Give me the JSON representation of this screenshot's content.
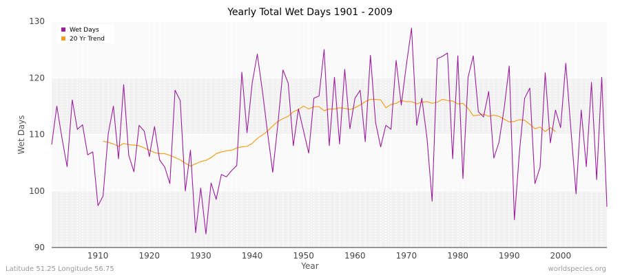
{
  "chart_data": {
    "type": "line",
    "title": "Yearly Total Wet Days 1901 - 2009",
    "xlabel": "Year",
    "ylabel": "Wet Days",
    "xlim": [
      1901,
      2009
    ],
    "ylim": [
      90,
      130
    ],
    "yticks": [
      90,
      100,
      110,
      120,
      130
    ],
    "xticks": [
      1910,
      1920,
      1930,
      1940,
      1950,
      1960,
      1970,
      1980,
      1990,
      2000
    ],
    "grid": true,
    "legend_position": "top-left",
    "series": [
      {
        "name": "Wet Days",
        "color": "#9b1b9e",
        "x": [
          1901,
          1902,
          1903,
          1904,
          1905,
          1906,
          1907,
          1908,
          1909,
          1910,
          1911,
          1912,
          1913,
          1914,
          1915,
          1916,
          1917,
          1918,
          1919,
          1920,
          1921,
          1922,
          1923,
          1924,
          1925,
          1926,
          1927,
          1928,
          1929,
          1930,
          1931,
          1932,
          1933,
          1934,
          1935,
          1936,
          1937,
          1938,
          1939,
          1940,
          1941,
          1942,
          1943,
          1944,
          1945,
          1946,
          1947,
          1948,
          1949,
          1950,
          1951,
          1952,
          1953,
          1954,
          1955,
          1956,
          1957,
          1958,
          1959,
          1960,
          1961,
          1962,
          1963,
          1964,
          1965,
          1966,
          1967,
          1968,
          1969,
          1970,
          1971,
          1972,
          1973,
          1974,
          1975,
          1976,
          1977,
          1978,
          1979,
          1980,
          1981,
          1982,
          1983,
          1984,
          1985,
          1986,
          1987,
          1988,
          1989,
          1990,
          1991,
          1992,
          1993,
          1994,
          1995,
          1996,
          1997,
          1998,
          1999,
          2000,
          2001,
          2002,
          2003,
          2004,
          2005,
          2006,
          2007,
          2008,
          2009
        ],
        "values": [
          108.2,
          115.0,
          109.4,
          104.3,
          116.1,
          110.9,
          111.7,
          106.4,
          106.9,
          97.4,
          99.1,
          110.1,
          115.0,
          105.7,
          118.8,
          106.3,
          103.4,
          111.6,
          110.6,
          106.1,
          111.4,
          105.5,
          104.2,
          101.3,
          117.8,
          116.0,
          100.0,
          107.2,
          92.6,
          100.5,
          92.4,
          101.4,
          98.5,
          102.9,
          102.5,
          103.6,
          104.5,
          121.0,
          110.3,
          119.1,
          124.2,
          117.6,
          110.3,
          103.3,
          111.9,
          121.4,
          119.1,
          108.0,
          114.5,
          110.6,
          106.7,
          116.4,
          116.8,
          125.0,
          108.0,
          120.1,
          108.3,
          121.5,
          111.0,
          116.4,
          117.8,
          108.7,
          124.0,
          112.1,
          107.8,
          111.6,
          110.9,
          123.1,
          115.2,
          122.3,
          128.8,
          111.6,
          116.4,
          109.4,
          98.2,
          123.4,
          123.8,
          124.4,
          105.7,
          123.9,
          102.2,
          120.1,
          123.9,
          114.0,
          113.1,
          117.6,
          105.8,
          108.6,
          114.5,
          122.1,
          94.9,
          107.0,
          116.4,
          118.2,
          101.3,
          104.2,
          120.9,
          108.5,
          114.3,
          111.2,
          122.6,
          110.8,
          99.5,
          114.3,
          104.3,
          119.2,
          102.0,
          120.1,
          97.2
        ]
      },
      {
        "name": "20 Yr Trend",
        "color": "#f5a020",
        "x": [
          1911,
          1912,
          1913,
          1914,
          1915,
          1916,
          1917,
          1918,
          1919,
          1920,
          1921,
          1922,
          1923,
          1924,
          1925,
          1926,
          1927,
          1928,
          1929,
          1930,
          1931,
          1932,
          1933,
          1934,
          1935,
          1936,
          1937,
          1938,
          1939,
          1940,
          1941,
          1942,
          1943,
          1944,
          1945,
          1946,
          1947,
          1948,
          1949,
          1950,
          1951,
          1952,
          1953,
          1954,
          1955,
          1956,
          1957,
          1958,
          1959,
          1960,
          1961,
          1962,
          1963,
          1964,
          1965,
          1966,
          1967,
          1968,
          1969,
          1970,
          1971,
          1972,
          1973,
          1974,
          1975,
          1976,
          1977,
          1978,
          1979,
          1980,
          1981,
          1982,
          1983,
          1984,
          1985,
          1986,
          1987,
          1988,
          1989,
          1990,
          1991,
          1992,
          1993,
          1994,
          1995,
          1996,
          1997,
          1998,
          1999
        ],
        "values": [
          108.8,
          108.6,
          108.3,
          107.9,
          108.4,
          108.2,
          108.1,
          108.0,
          107.6,
          107.2,
          106.8,
          106.6,
          106.6,
          106.3,
          105.9,
          105.5,
          104.9,
          104.4,
          104.8,
          105.2,
          105.4,
          105.9,
          106.6,
          106.9,
          107.1,
          107.2,
          107.6,
          107.8,
          107.9,
          108.4,
          109.3,
          109.9,
          110.6,
          111.5,
          112.3,
          112.8,
          113.2,
          114.0,
          114.4,
          115.0,
          114.5,
          114.9,
          114.9,
          114.2,
          114.5,
          114.5,
          114.7,
          114.6,
          114.4,
          114.7,
          115.2,
          115.8,
          116.2,
          116.2,
          116.1,
          114.7,
          115.3,
          115.5,
          116.0,
          115.8,
          115.8,
          115.4,
          115.7,
          115.8,
          115.5,
          115.7,
          116.2,
          116.0,
          115.9,
          115.4,
          115.5,
          114.6,
          113.3,
          113.4,
          113.6,
          113.2,
          113.4,
          113.2,
          112.7,
          112.2,
          112.3,
          112.6,
          112.5,
          111.8,
          111.0,
          111.3,
          110.5,
          111.2,
          110.5
        ]
      }
    ]
  },
  "footer": {
    "location": "Latitude 51.25 Longitude 56.75",
    "source": "worldspecies.org"
  }
}
